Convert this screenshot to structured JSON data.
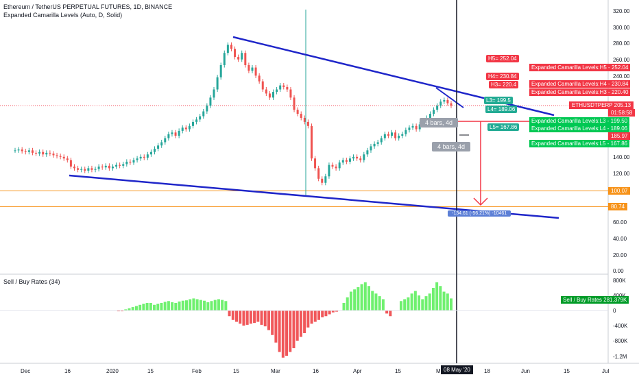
{
  "header": {
    "title": "Ethereum / TetherUS PERPETUAL FUTURES, 1D, BINANCE",
    "indicator": "Expanded Camarilla Levels (Auto, D, Solid)",
    "sub_indicator": "Sell / Buy Rates (34)"
  },
  "price_axis": {
    "ticks": [
      "320.00",
      "300.00",
      "280.00",
      "260.00",
      "240.00",
      "220.00",
      "200.00",
      "180.00",
      "160.00",
      "140.00",
      "120.00",
      "100.00",
      "80.00",
      "60.00",
      "40.00",
      "20.00",
      "0.00"
    ],
    "tags": [
      {
        "label": "ETHUSDTPERP",
        "value": "205.13",
        "color": "#f23645"
      },
      {
        "label": "",
        "value": "01:58:58",
        "color": "#f23645"
      },
      {
        "label": "",
        "value": "185.97",
        "color": "#f23645"
      },
      {
        "label": "",
        "value": "100.07",
        "color": "#f7931a"
      },
      {
        "label": "",
        "value": "80.74",
        "color": "#f7931a"
      }
    ]
  },
  "volume_axis": {
    "ticks": [
      "800K",
      "400K",
      "0",
      "-400K",
      "-800K",
      "-1.2M"
    ],
    "tag": {
      "label": "Sell / Buy Rates",
      "value": "281.379K"
    }
  },
  "time_axis": {
    "ticks": [
      "Dec",
      "16",
      "2020",
      "15",
      "Feb",
      "15",
      "Mar",
      "16",
      "Apr",
      "15",
      "Ma",
      "18",
      "Jun",
      "15",
      "Jul"
    ],
    "crosshair_date": "08 May '20"
  },
  "camarilla": {
    "chart_labels": [
      {
        "text": "H5= 252.04",
        "color": "#f23645"
      },
      {
        "text": "H4= 230.84",
        "color": "#f23645"
      },
      {
        "text": "H3= 220.4",
        "color": "#f23645"
      },
      {
        "text": "L3= 199.5",
        "color": "#22ab94"
      },
      {
        "text": "L4= 189.06",
        "color": "#22ab94"
      },
      {
        "text": "L5= 167.86",
        "color": "#22ab94"
      }
    ],
    "axis_labels": [
      {
        "label": "Expanded Camarilla Levels:H5",
        "value": "252.04",
        "color": "#f23645"
      },
      {
        "label": "Expanded Camarilla Levels:H4",
        "value": "230.84",
        "color": "#f23645"
      },
      {
        "label": "Expanded Camarilla Levels:H3",
        "value": "220.40",
        "color": "#f23645"
      },
      {
        "label": "Expanded Camarilla Levels:L3",
        "value": "199.50",
        "color": "#00c853"
      },
      {
        "label": "Expanded Camarilla Levels:L4",
        "value": "189.06",
        "color": "#00c853"
      },
      {
        "label": "Expanded Camarilla Levels:L5",
        "value": "167.86",
        "color": "#00c853"
      }
    ]
  },
  "drawings": {
    "bars_label_1": "4 bars, 4d",
    "bars_label_2": "4 bars, 4d",
    "measure_label": "-134.61 (-56.21%) -10461"
  },
  "colors": {
    "up": "#26a69a",
    "down": "#ef5350",
    "trendline": "#1f26c9",
    "hline": "#f7931a",
    "buy": "#6ff06f",
    "sell": "#f0575a"
  }
}
